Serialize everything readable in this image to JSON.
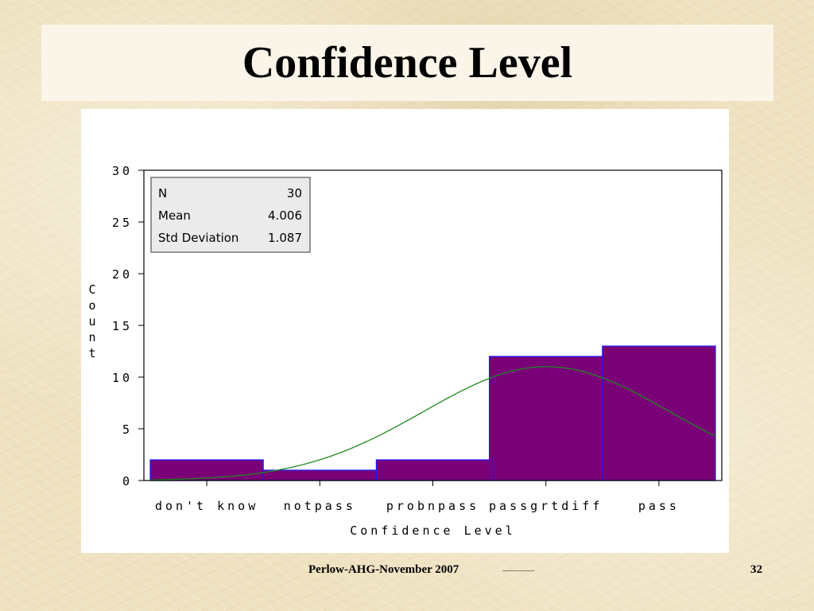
{
  "slide": {
    "title": "Confidence Level",
    "footer": "Perlow-AHG-November 2007",
    "page_number": "32"
  },
  "colors": {
    "bar_fill": "#7a0078",
    "bar_edge": "#1a1aff",
    "curve": "#1f8a1f"
  },
  "chart_data": {
    "type": "bar",
    "title": "",
    "xlabel": "Confidence Level",
    "ylabel": "Count",
    "categories": [
      "don't know",
      "notpass",
      "probnpass",
      "passgrtdiff",
      "pass"
    ],
    "values": [
      2,
      1,
      2,
      12,
      13
    ],
    "ylim": [
      0,
      30
    ],
    "yticks": [
      0,
      5,
      10,
      15,
      20,
      25,
      30
    ],
    "grid": false,
    "normal_curve": {
      "mean": 4.006,
      "std": 1.087,
      "n": 30
    },
    "stats_box": {
      "placement": "top-left",
      "rows": [
        {
          "label": "N",
          "value": "30"
        },
        {
          "label": "Mean",
          "value": "4.006"
        },
        {
          "label": "Std Deviation",
          "value": "1.087"
        }
      ]
    }
  }
}
